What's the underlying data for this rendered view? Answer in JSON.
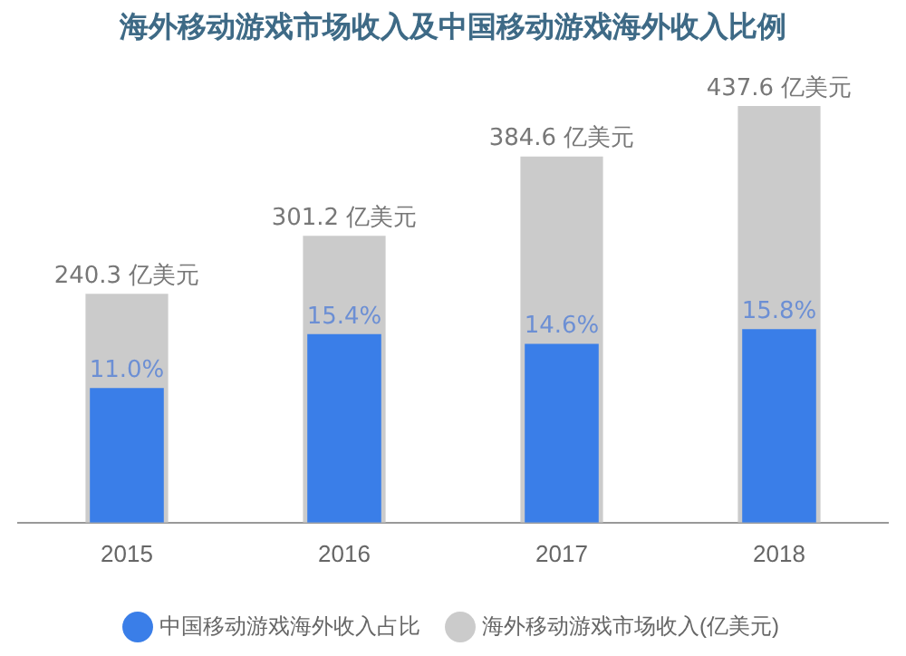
{
  "chart_data": {
    "type": "bar",
    "title": "海外移动游戏市场收入及中国移动游戏海外收入比例",
    "categories": [
      "2015",
      "2016",
      "2017",
      "2018"
    ],
    "series": [
      {
        "name": "海外移动游戏市场收入(亿美元)",
        "color": "#cbcbcb",
        "values": [
          240.3,
          301.2,
          384.6,
          437.6
        ],
        "value_labels": [
          "240.3 亿美元",
          "301.2 亿美元",
          "384.6 亿美元",
          "437.6 亿美元"
        ]
      },
      {
        "name": "中国移动游戏海外收入占比",
        "color": "#3a7ee8",
        "axis": "y2",
        "values": [
          11.0,
          15.4,
          14.6,
          15.8
        ],
        "value_labels": [
          "11.0%",
          "15.4%",
          "14.6%",
          "15.8%"
        ]
      }
    ],
    "legend": "bottom",
    "grid": false,
    "tick_labels": "x"
  }
}
